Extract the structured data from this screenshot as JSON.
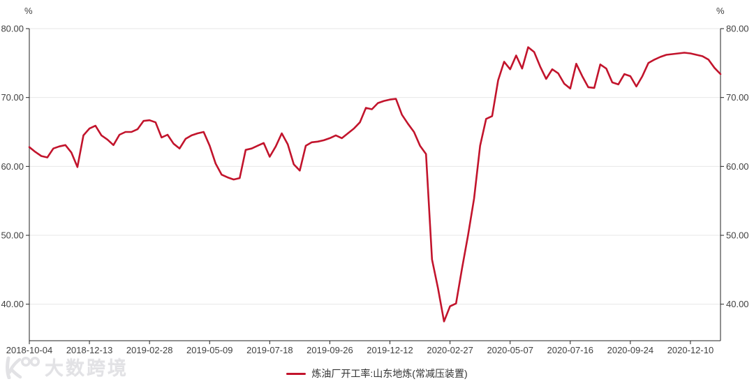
{
  "chart": {
    "y_unit": "%",
    "colors": {
      "line": "#c2142c",
      "axis": "#222222",
      "grid": "#e7e7e7",
      "tick_text": "#404040",
      "watermark": "#e2e2e5"
    },
    "legend": {
      "label": "炼油厂开工率:山东地炼(常减压装置)"
    }
  },
  "watermark": {
    "text": "大数跨境"
  },
  "chart_data": {
    "type": "line",
    "title": "",
    "xlabel": "",
    "ylabel": "%",
    "ylim": [
      34.7,
      80
    ],
    "y_ticks": [
      80,
      70,
      60,
      50,
      40
    ],
    "y_tick_format_decimals": 2,
    "grid": "horizontal-only",
    "legend_position": "bottom-center",
    "dual_y_axis": true,
    "x_tick_labels": [
      "2018-10-04",
      "2018-12-13",
      "2019-02-28",
      "2019-05-09",
      "2019-07-18",
      "2019-09-26",
      "2019-12-12",
      "2020-02-27",
      "2020-05-07",
      "2020-07-16",
      "2020-09-24",
      "2020-12-10"
    ],
    "x_tick_every_n_points": 10,
    "series": [
      {
        "name": "炼油厂开工率:山东地炼(常减压装置)",
        "color": "#c2142c",
        "frequency": "weekly",
        "values": [
          62.8,
          62.1,
          61.5,
          61.3,
          62.6,
          62.9,
          63.1,
          62.0,
          59.9,
          64.5,
          65.5,
          65.9,
          64.5,
          63.9,
          63.1,
          64.6,
          65.0,
          65.0,
          65.4,
          66.6,
          66.7,
          66.4,
          64.2,
          64.6,
          63.3,
          62.6,
          64.0,
          64.5,
          64.8,
          65.0,
          63.0,
          60.4,
          58.8,
          58.4,
          58.1,
          58.3,
          62.4,
          62.6,
          63.0,
          63.4,
          61.4,
          62.9,
          64.8,
          63.2,
          60.3,
          59.4,
          63.0,
          63.5,
          63.6,
          63.8,
          64.1,
          64.5,
          64.1,
          64.8,
          65.5,
          66.4,
          68.5,
          68.3,
          69.2,
          69.5,
          69.7,
          69.8,
          67.5,
          66.2,
          65.0,
          63.0,
          61.8,
          46.5,
          42.3,
          37.5,
          39.7,
          40.1,
          45.2,
          50.0,
          55.3,
          63.0,
          66.9,
          67.3,
          72.5,
          75.2,
          74.1,
          76.1,
          74.2,
          77.3,
          76.6,
          74.5,
          72.7,
          74.1,
          73.5,
          72.0,
          71.3,
          74.9,
          73.1,
          71.5,
          71.4,
          74.8,
          74.2,
          72.2,
          71.9,
          73.4,
          73.1,
          71.6,
          73.1,
          75.0,
          75.5,
          75.9,
          76.2,
          76.3,
          76.4,
          76.5,
          76.4,
          76.2,
          76.0,
          75.5,
          74.3,
          73.4
        ]
      }
    ]
  }
}
